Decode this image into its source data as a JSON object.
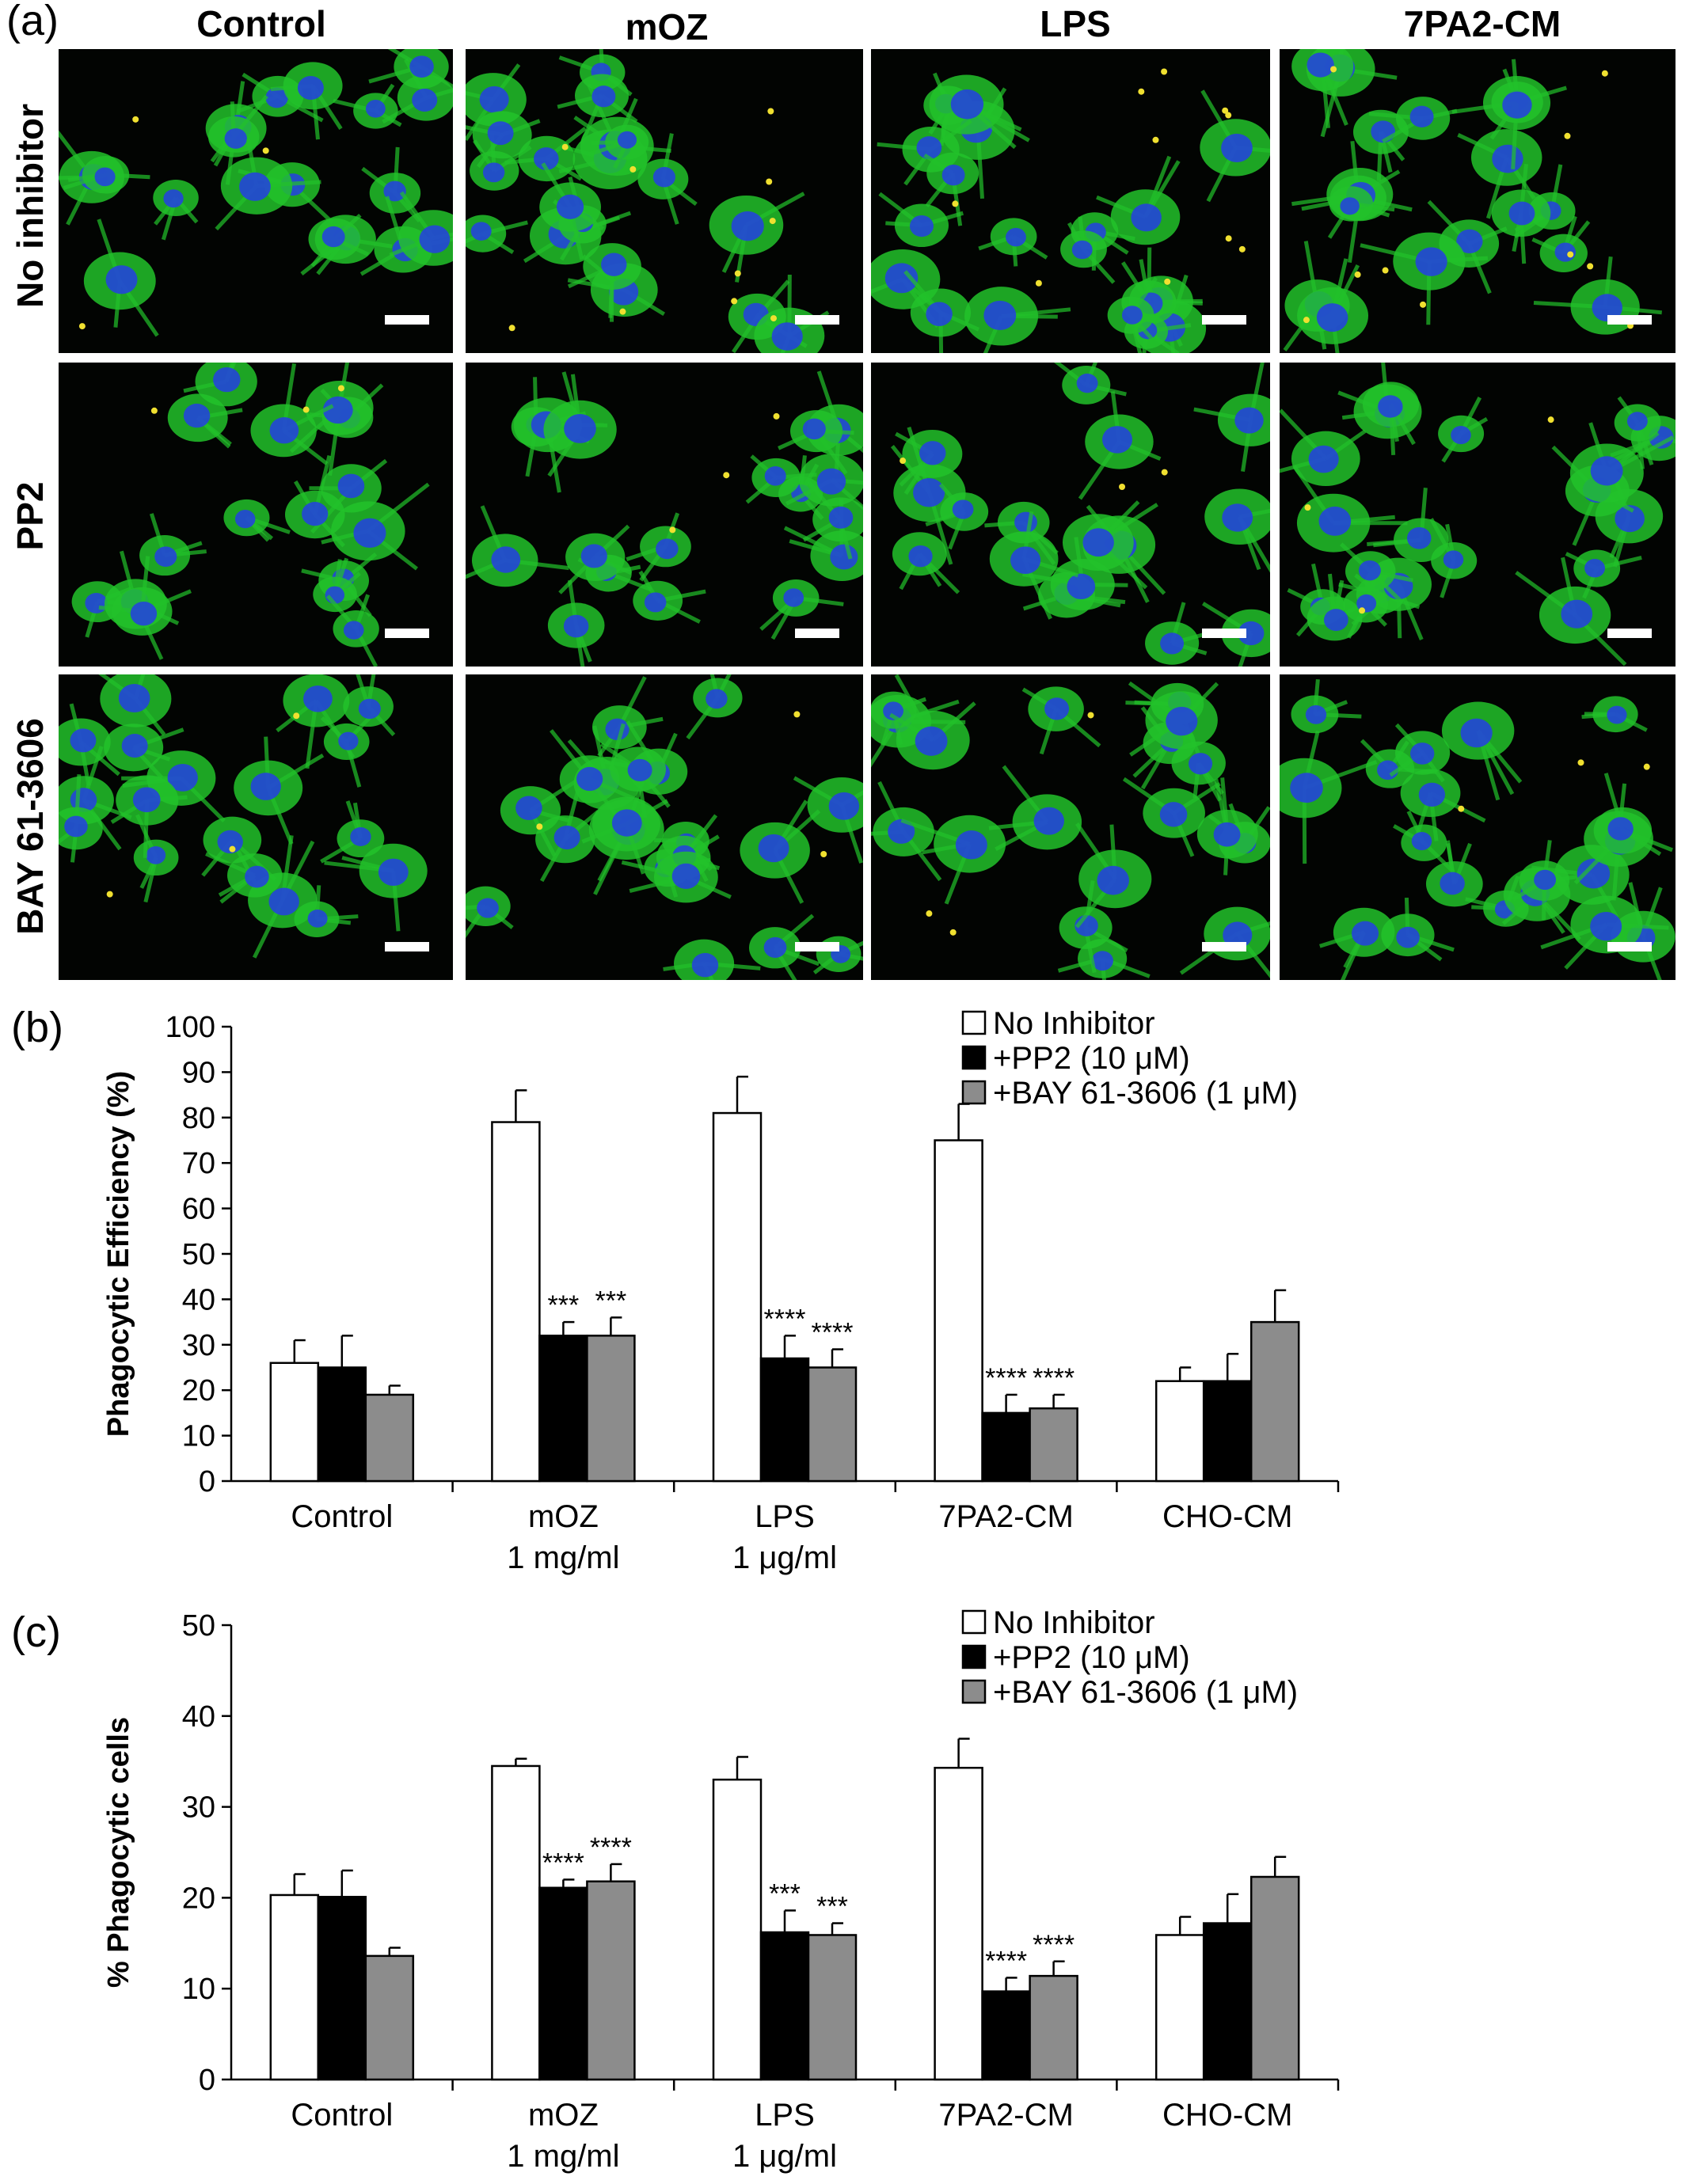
{
  "micrographs": {
    "panel_label": "(a)",
    "columns": [
      "Control",
      "mOZ",
      "LPS",
      "7PA2-CM"
    ],
    "rows": [
      "No inhibitor",
      "PP2",
      "BAY 61-3606"
    ],
    "colors": {
      "cell": "#22c22a",
      "nucleus": "#2446d8",
      "particle": "#f0e030",
      "background": "#020402"
    }
  },
  "legend": {
    "entries": [
      "No Inhibitor",
      "+PP2 (10 μM)",
      "+BAY 61-3606 (1 μM)"
    ],
    "colors": [
      "#ffffff",
      "#000000",
      "#8c8c8c"
    ]
  },
  "chart_data": [
    {
      "panel_label": "(b)",
      "type": "bar",
      "ylabel": "Phagocytic Efficiency (%)",
      "ylim": [
        0,
        100
      ],
      "yticks": [
        0,
        10,
        20,
        30,
        40,
        50,
        60,
        70,
        80,
        90,
        100
      ],
      "categories": [
        [
          "Control"
        ],
        [
          "mOZ",
          "1 mg/ml"
        ],
        [
          "LPS",
          "1 μg/ml"
        ],
        [
          "7PA2-CM"
        ],
        [
          "CHO-CM"
        ]
      ],
      "series": [
        {
          "name": "No Inhibitor",
          "color": "#ffffff",
          "values": [
            26,
            79,
            81,
            75,
            22
          ],
          "errors": [
            5,
            7,
            8,
            8,
            3
          ],
          "sig": [
            "",
            "",
            "",
            "",
            ""
          ]
        },
        {
          "name": "+PP2 (10 μM)",
          "color": "#000000",
          "values": [
            25,
            32,
            27,
            15,
            22
          ],
          "errors": [
            7,
            3,
            5,
            4,
            6
          ],
          "sig": [
            "",
            "***",
            "****",
            "****",
            ""
          ]
        },
        {
          "name": "+BAY 61-3606 (1 μM)",
          "color": "#8c8c8c",
          "values": [
            19,
            32,
            25,
            16,
            35
          ],
          "errors": [
            2,
            4,
            4,
            3,
            7
          ],
          "sig": [
            "",
            "***",
            "****",
            "****",
            ""
          ]
        }
      ]
    },
    {
      "panel_label": "(c)",
      "type": "bar",
      "ylabel": "% Phagocytic cells",
      "ylim": [
        0,
        50
      ],
      "yticks": [
        0,
        10,
        20,
        30,
        40,
        50
      ],
      "categories": [
        [
          "Control"
        ],
        [
          "mOZ",
          "1 mg/ml"
        ],
        [
          "LPS",
          "1 μg/ml"
        ],
        [
          "7PA2-CM"
        ],
        [
          "CHO-CM"
        ]
      ],
      "series": [
        {
          "name": "No Inhibitor",
          "color": "#ffffff",
          "values": [
            20.3,
            34.5,
            33,
            34.3,
            15.9
          ],
          "errors": [
            2.3,
            0.8,
            2.5,
            3.2,
            2
          ],
          "sig": [
            "",
            "",
            "",
            "",
            ""
          ]
        },
        {
          "name": "+PP2 (10 μM)",
          "color": "#000000",
          "values": [
            20.1,
            21.1,
            16.2,
            9.7,
            17.2
          ],
          "errors": [
            2.9,
            0.9,
            2.4,
            1.5,
            3.2
          ],
          "sig": [
            "",
            "****",
            "***",
            "****",
            ""
          ]
        },
        {
          "name": "+BAY 61-3606 (1 μM)",
          "color": "#8c8c8c",
          "values": [
            13.6,
            21.8,
            15.9,
            11.4,
            22.3
          ],
          "errors": [
            0.9,
            1.9,
            1.3,
            1.6,
            2.2
          ],
          "sig": [
            "",
            "****",
            "***",
            "****",
            ""
          ]
        }
      ]
    }
  ]
}
